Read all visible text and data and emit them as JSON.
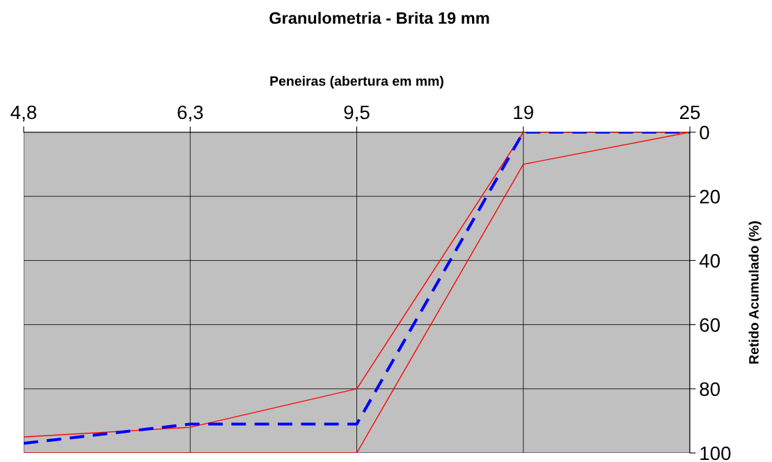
{
  "chart_data": {
    "type": "line",
    "title": "Granulometria - Brita 19 mm",
    "xlabel": "Peneiras (abertura em mm)",
    "ylabel": "Retido Acumulado (%)",
    "categories": [
      "4,8",
      "6,3",
      "9,5",
      "19",
      "25"
    ],
    "series": [
      {
        "color": "#ff0000",
        "values": [
          95,
          92,
          80,
          0,
          0
        ],
        "line_style": "solid"
      },
      {
        "color": "#ff0000",
        "values": [
          100,
          100,
          100,
          10,
          0
        ],
        "line_style": "solid"
      },
      {
        "color": "#0000ff",
        "values": [
          97,
          91,
          91,
          0,
          0
        ],
        "line_style": "dashed"
      }
    ],
    "ylim": [
      100,
      0
    ],
    "yticks": [
      0,
      20,
      40,
      60,
      80,
      100
    ],
    "grid": true,
    "marker": "none"
  }
}
